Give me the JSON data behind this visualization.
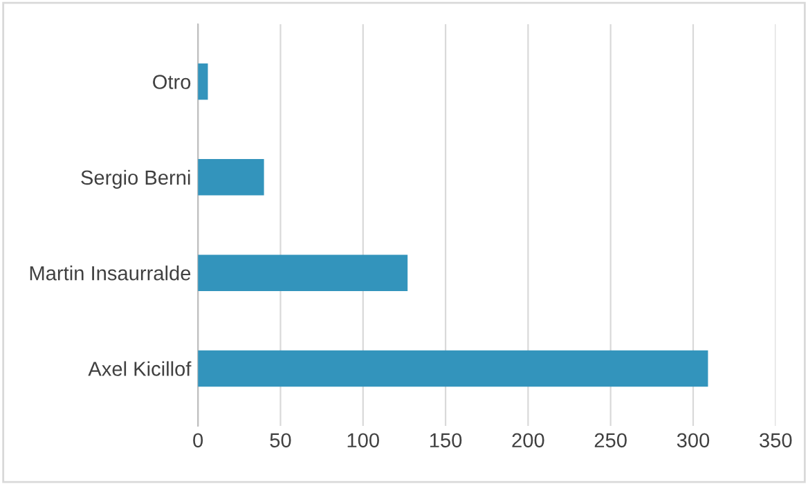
{
  "chart_data": {
    "type": "bar",
    "orientation": "horizontal",
    "categories": [
      "Otro",
      "Sergio Berni",
      "Martin Insaurralde",
      "Axel Kicillof"
    ],
    "values": [
      6,
      40,
      127,
      309
    ],
    "color": "#3394bc",
    "xlim": [
      0,
      350
    ],
    "xticks": [
      0,
      50,
      100,
      150,
      200,
      250,
      300,
      350
    ],
    "grid": "x"
  }
}
